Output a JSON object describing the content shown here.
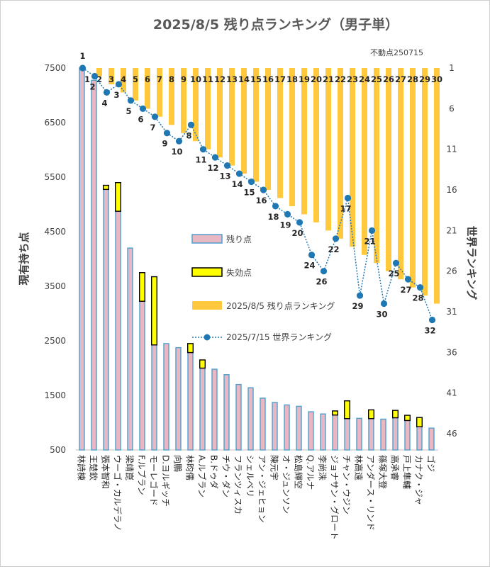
{
  "chart_data": {
    "type": "bar",
    "title": "2025/8/5 残り点ランキング（男子単）",
    "note": "不動点250715",
    "ylabel": "現有持ち点",
    "y2label": "世界ランキング",
    "ylim": [
      500,
      7500
    ],
    "yticks": [
      500,
      1500,
      2500,
      3500,
      4500,
      5500,
      6500,
      7500
    ],
    "y2lim": [
      1,
      46
    ],
    "y2ticks": [
      1,
      6,
      11,
      16,
      21,
      26,
      31,
      36,
      41,
      46
    ],
    "grid": false,
    "legend_position": "center",
    "categories": [
      "林詩棟",
      "王楚欽",
      "張本智和",
      "ウーゴ・カルデラノ",
      "梁靖崑",
      "F.ルブラン",
      "モーレゴード",
      "D.ヨルギッチ",
      "向鵬",
      "林昀儒",
      "A.ルブラン",
      "B.ドゥダ",
      "チウ・ダン",
      "フランツィスカ",
      "シェルベリ",
      "アン・ジェヒョン",
      "陳元宇",
      "オ・ジュンソン",
      "松島輝空",
      "Q.アルナ",
      "李尚洙",
      "ジョナサン・グロート",
      "チャン・ウジン",
      "林高遠",
      "アンダース・リンド",
      "篠塚大登",
      "高承睿",
      "戸上隼輔",
      "カナク・ジャ",
      "ゴジ"
    ],
    "series": [
      {
        "name": "残り点",
        "values": [
          7500,
          7275,
          5275,
          4875,
          4200,
          3225,
          2425,
          2450,
          2375,
          2285,
          2000,
          1980,
          1880,
          1700,
          1640,
          1450,
          1370,
          1325,
          1300,
          1200,
          1160,
          1140,
          1075,
          1080,
          1075,
          1065,
          1090,
          1040,
          925,
          900
        ]
      },
      {
        "name": "失効点",
        "values": [
          0,
          0,
          75,
          525,
          0,
          525,
          1250,
          0,
          0,
          165,
          150,
          0,
          0,
          0,
          0,
          0,
          0,
          0,
          0,
          0,
          0,
          75,
          325,
          0,
          160,
          0,
          135,
          95,
          170,
          0
        ]
      },
      {
        "name": "2025/8/5 残り点ランキング",
        "values": [
          1,
          2,
          3,
          4,
          5,
          6,
          7,
          8,
          9,
          10,
          11,
          12,
          13,
          14,
          15,
          16,
          17,
          18,
          19,
          20,
          21,
          22,
          23,
          24,
          25,
          26,
          27,
          28,
          29,
          30
        ]
      },
      {
        "name": "2025/7/15 世界ランキング",
        "values": [
          1,
          2,
          4,
          3,
          5,
          6,
          7,
          9,
          10,
          8,
          11,
          12,
          13,
          14,
          15,
          16,
          18,
          19,
          20,
          24,
          26,
          22,
          17,
          29,
          21,
          30,
          25,
          27,
          28,
          32
        ]
      }
    ]
  }
}
